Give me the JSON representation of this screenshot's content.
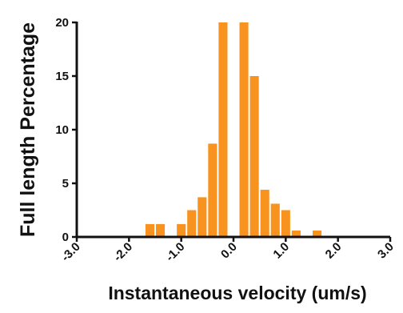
{
  "chart_data": {
    "type": "bar",
    "title": "",
    "xlabel": "Instantaneous velocity (um/s)",
    "ylabel": "Full length Percentage",
    "xlim": [
      -3.0,
      3.0
    ],
    "ylim": [
      0,
      20
    ],
    "xticks": [
      "-3.0",
      "-2.0",
      "-1.0",
      "0.0",
      "1.0",
      "2.0",
      "3.0"
    ],
    "yticks": [
      "0",
      "5",
      "10",
      "15",
      "20"
    ],
    "bar_width": 0.17,
    "bar_color": "#F7931E",
    "grid": false,
    "legend": "none",
    "bars": [
      {
        "x": -1.6,
        "y": 1.2
      },
      {
        "x": -1.4,
        "y": 1.2
      },
      {
        "x": -1.2,
        "y": 0.0
      },
      {
        "x": -1.0,
        "y": 1.2
      },
      {
        "x": -0.8,
        "y": 2.5
      },
      {
        "x": -0.6,
        "y": 3.7
      },
      {
        "x": -0.4,
        "y": 8.7
      },
      {
        "x": -0.2,
        "y": 20.0
      },
      {
        "x": 0.0,
        "y": 0.0
      },
      {
        "x": 0.2,
        "y": 20.0
      },
      {
        "x": 0.4,
        "y": 15.0
      },
      {
        "x": 0.6,
        "y": 4.4
      },
      {
        "x": 0.8,
        "y": 3.1
      },
      {
        "x": 1.0,
        "y": 2.5
      },
      {
        "x": 1.2,
        "y": 0.6
      },
      {
        "x": 1.4,
        "y": 0.0
      },
      {
        "x": 1.6,
        "y": 0.6
      }
    ]
  }
}
